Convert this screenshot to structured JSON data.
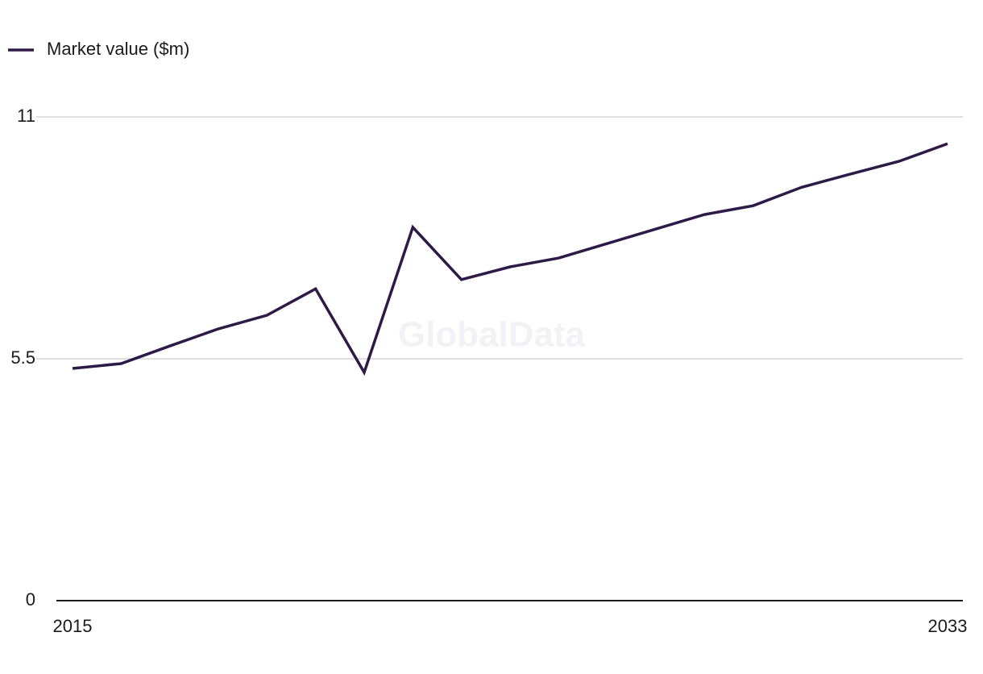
{
  "chart_data": {
    "type": "line",
    "watermark": "GlobalData",
    "x": [
      2015,
      2016,
      2017,
      2018,
      2019,
      2020,
      2021,
      2022,
      2023,
      2024,
      2025,
      2026,
      2027,
      2028,
      2029,
      2030,
      2031,
      2032,
      2033
    ],
    "series": [
      {
        "name": "Market value ($m)",
        "color": "#2e1a47",
        "values": [
          5.28,
          5.39,
          5.79,
          6.18,
          6.49,
          7.09,
          5.19,
          8.49,
          7.3,
          7.59,
          7.79,
          8.12,
          8.45,
          8.78,
          8.98,
          9.4,
          9.7,
          9.99,
          10.39
        ]
      }
    ],
    "xlim": [
      2015,
      2033
    ],
    "xticks": [
      2015,
      2033
    ],
    "ylim": [
      0,
      11
    ],
    "yticks": [
      0,
      5.5,
      11
    ],
    "grid": true,
    "legend": "top-left"
  }
}
